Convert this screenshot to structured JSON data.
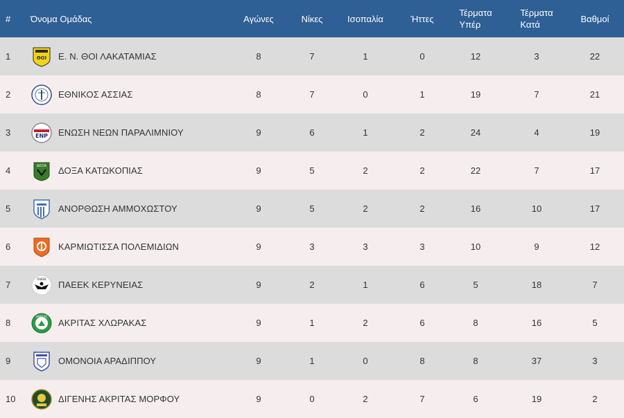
{
  "headers": {
    "pos": "#",
    "team": "Όνομα Ομάδας",
    "played": "Αγώνες",
    "wins": "Νίκες",
    "draws": "Ισοπαλία",
    "losses": "Ήττες",
    "gf_line1": "Τέρματα",
    "gf_line2": "Υπέρ",
    "ga_line1": "Τέρματα",
    "ga_line2": "Κατά",
    "points": "Βαθμοί"
  },
  "rows": [
    {
      "pos": "1",
      "team": "Ε. Ν. ΘΟΙ ΛΑΚΑΤΑΜΙΑΣ",
      "played": "8",
      "wins": "7",
      "draws": "1",
      "losses": "0",
      "gf": "12",
      "ga": "3",
      "points": "22",
      "logo": "thoi-lakatamias-crest-icon",
      "logo_text": "ΘΟΙ"
    },
    {
      "pos": "2",
      "team": "ΕΘΝΙΚΟΣ ΑΣΣΙΑΣ",
      "played": "8",
      "wins": "7",
      "draws": "0",
      "losses": "1",
      "gf": "19",
      "ga": "7",
      "points": "21",
      "logo": "ethnikos-assias-crest-icon",
      "logo_text": "ΕΘΝΙΚΟΣ ΑΣΣΙΑΣ"
    },
    {
      "pos": "3",
      "team": "ΕΝΩΣΗ ΝΕΩΝ ΠΑΡΑΛΙΜΝΙΟΥ",
      "played": "9",
      "wins": "6",
      "draws": "1",
      "losses": "2",
      "gf": "24",
      "ga": "4",
      "points": "19",
      "logo": "enp-crest-icon",
      "logo_text": "ENP"
    },
    {
      "pos": "4",
      "team": "ΔΟΞΑ ΚΑΤΩΚΟΠΙΑΣ",
      "played": "9",
      "wins": "5",
      "draws": "2",
      "losses": "2",
      "gf": "22",
      "ga": "7",
      "points": "17",
      "logo": "doxa-katokopias-crest-icon",
      "logo_text": "ΔΟΞΑ"
    },
    {
      "pos": "5",
      "team": "ΑΝΟΡΘΩΣΗ ΑΜΜΟΧΩΣΤΟΥ",
      "played": "9",
      "wins": "5",
      "draws": "2",
      "losses": "2",
      "gf": "16",
      "ga": "10",
      "points": "17",
      "logo": "anorthosis-crest-icon",
      "logo_text": ""
    },
    {
      "pos": "6",
      "team": "ΚΑΡΜΙΩΤΙΣΣΑ ΠΟΛΕΜΙΔΙΩΝ",
      "played": "9",
      "wins": "3",
      "draws": "3",
      "losses": "3",
      "gf": "10",
      "ga": "9",
      "points": "12",
      "logo": "karmiotissa-crest-icon",
      "logo_text": ""
    },
    {
      "pos": "7",
      "team": "ΠΑΕΕΚ ΚΕΡΥΝΕΙΑΣ",
      "played": "9",
      "wins": "2",
      "draws": "1",
      "losses": "6",
      "gf": "5",
      "ga": "18",
      "points": "7",
      "logo": "paeek-eagle-crest-icon",
      "logo_text": "ΠΑΕΕΚ"
    },
    {
      "pos": "8",
      "team": "ΑΚΡΙΤΑΣ ΧΛΩΡΑΚΑΣ",
      "played": "9",
      "wins": "1",
      "draws": "2",
      "losses": "6",
      "gf": "8",
      "ga": "16",
      "points": "5",
      "logo": "akritas-chlorakas-crest-icon",
      "logo_text": "ΑΚΡΙΤΑΣ"
    },
    {
      "pos": "9",
      "team": "ΟΜΟΝΟΙΑ ΑΡΑΔΙΠΠΟΥ",
      "played": "9",
      "wins": "1",
      "draws": "0",
      "losses": "8",
      "gf": "8",
      "ga": "37",
      "points": "3",
      "logo": "omonoia-aradippou-crest-icon",
      "logo_text": ""
    },
    {
      "pos": "10",
      "team": "ΔΙΓΕΝΗΣ ΑΚΡΙΤΑΣ ΜΟΡΦΟΥ",
      "played": "9",
      "wins": "0",
      "draws": "2",
      "losses": "7",
      "gf": "6",
      "ga": "19",
      "points": "2",
      "logo": "digenis-morfou-crest-icon",
      "logo_text": ""
    }
  ],
  "colors": {
    "header_bg": "#2e5f95",
    "row_odd": "#dcdcdc",
    "row_even": "#f6eeee"
  }
}
